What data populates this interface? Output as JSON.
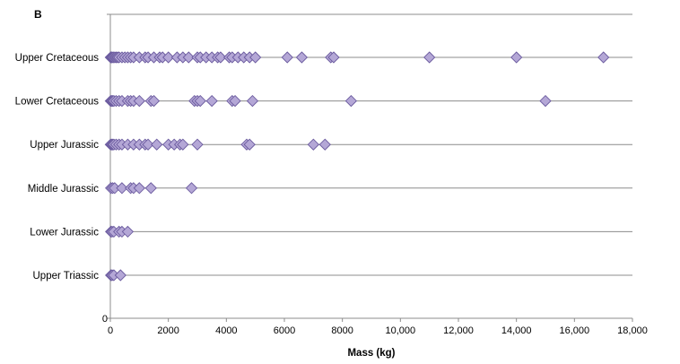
{
  "panel_label": "B",
  "chart_data": {
    "type": "scatter",
    "xlabel": "Mass (kg)",
    "ylabel": "",
    "xlim": [
      0,
      18000
    ],
    "x_ticks": [
      "0",
      "2000",
      "4000",
      "6000",
      "8000",
      "10,000",
      "12,000",
      "14,000",
      "16,000",
      "18,000"
    ],
    "y_zero_label": "0",
    "grid": "horizontal",
    "marker": "diamond",
    "marker_color": "#b4a7d6",
    "marker_edge_color": "#6a5a9e",
    "categories": [
      "Upper Cretaceous",
      "Lower Cretaceous",
      "Upper Jurassic",
      "Middle Jurassic",
      "Lower Jurassic",
      "Upper Triassic"
    ],
    "series": [
      {
        "category": "Upper Cretaceous",
        "x": [
          10,
          30,
          60,
          100,
          150,
          200,
          250,
          300,
          400,
          500,
          600,
          700,
          800,
          1000,
          1200,
          1300,
          1500,
          1700,
          1800,
          2000,
          2300,
          2500,
          2700,
          3000,
          3100,
          3300,
          3500,
          3700,
          3800,
          4100,
          4200,
          4400,
          4600,
          4800,
          5000,
          6100,
          6600,
          7600,
          7700,
          11000,
          14000,
          17000
        ]
      },
      {
        "category": "Lower Cretaceous",
        "x": [
          10,
          40,
          80,
          120,
          200,
          300,
          400,
          600,
          700,
          800,
          1000,
          1400,
          1500,
          2900,
          3000,
          3100,
          3500,
          4200,
          4300,
          4900,
          8300,
          15000
        ]
      },
      {
        "category": "Upper Jurassic",
        "x": [
          10,
          40,
          80,
          120,
          200,
          300,
          400,
          600,
          800,
          1000,
          1200,
          1300,
          1600,
          2000,
          2200,
          2400,
          2500,
          3000,
          4700,
          4800,
          7000,
          7400
        ]
      },
      {
        "category": "Middle Jurassic",
        "x": [
          20,
          80,
          150,
          400,
          700,
          800,
          1000,
          1400,
          2800
        ]
      },
      {
        "category": "Lower Jurassic",
        "x": [
          20,
          60,
          120,
          300,
          400,
          600
        ]
      },
      {
        "category": "Upper Triassic",
        "x": [
          20,
          60,
          120,
          350
        ]
      }
    ]
  }
}
